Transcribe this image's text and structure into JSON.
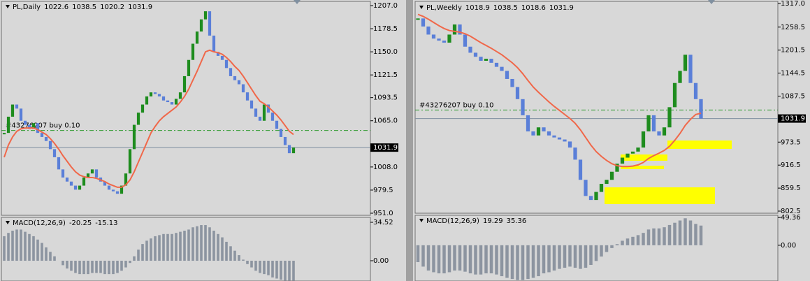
{
  "chart_data": [
    {
      "type": "candlestick",
      "title": "PL,Daily",
      "ohlc": [
        1022.6,
        1038.5,
        1020.2,
        1031.9
      ],
      "values": [
        1050,
        1070,
        1085,
        1080,
        1065,
        1060,
        1055,
        1062,
        1050,
        1045,
        1040,
        1030,
        1020,
        1005,
        995,
        990,
        985,
        980,
        985,
        995,
        1000,
        1005,
        995,
        990,
        985,
        980,
        978,
        975,
        985,
        1000,
        1030,
        1060,
        1075,
        1085,
        1095,
        1100,
        1098,
        1095,
        1090,
        1088,
        1085,
        1092,
        1100,
        1120,
        1140,
        1160,
        1175,
        1190,
        1200,
        1170,
        1150,
        1145,
        1140,
        1130,
        1120,
        1115,
        1110,
        1100,
        1090,
        1080,
        1070,
        1065,
        1085,
        1075,
        1065,
        1055,
        1045,
        1035,
        1025,
        1031.9
      ],
      "ma": [
        1020,
        1035,
        1045,
        1052,
        1055,
        1056,
        1056,
        1056,
        1054,
        1051,
        1048,
        1043,
        1037,
        1030,
        1022,
        1015,
        1008,
        1002,
        998,
        996,
        995,
        995,
        994,
        992,
        990,
        987,
        985,
        983,
        983,
        986,
        992,
        1002,
        1014,
        1026,
        1038,
        1050,
        1058,
        1065,
        1070,
        1074,
        1078,
        1082,
        1088,
        1095,
        1104,
        1115,
        1126,
        1138,
        1150,
        1152,
        1150,
        1149,
        1147,
        1143,
        1138,
        1132,
        1127,
        1120,
        1112,
        1104,
        1096,
        1089,
        1086,
        1082,
        1077,
        1072,
        1066,
        1059,
        1052,
        1048
      ],
      "up_color": "#1e8c1e",
      "down_color": "#5a7fd8",
      "ma_color": "#f0684a",
      "ylim": [
        951,
        1207
      ],
      "yticks": [
        {
          "value": 1207,
          "label": "1207.0"
        },
        1178.5,
        {
          "value": 1150,
          "label": "1150.0"
        },
        1121.5,
        1093.5,
        {
          "value": 1065,
          "label": "1065.0"
        },
        {
          "value": 1008,
          "label": "1008.0"
        },
        979.5,
        {
          "value": 951,
          "label": "951.0"
        }
      ],
      "last_price": 1031.9,
      "order_label": "#43276207 buy 0.10",
      "order_level": 1053
    },
    {
      "type": "histogram",
      "title": "MACD(12,26,9)",
      "header_values": [
        -20.25,
        -15.13
      ],
      "values": [
        22,
        25,
        27,
        28,
        28,
        26,
        24,
        22,
        19,
        16,
        12,
        8,
        4,
        0,
        -4,
        -7,
        -9,
        -11,
        -12,
        -12,
        -12,
        -11,
        -11,
        -11,
        -12,
        -12,
        -12,
        -11,
        -9,
        -6,
        -2,
        4,
        10,
        15,
        18,
        20,
        22,
        23,
        24,
        24,
        24,
        25,
        26,
        27,
        28,
        30,
        31,
        32,
        32,
        30,
        27,
        24,
        21,
        17,
        13,
        9,
        5,
        1,
        -3,
        -6,
        -9,
        -11,
        -12,
        -13,
        -15,
        -16,
        -17,
        -18,
        -18,
        -18
      ],
      "color": "#8c94a0",
      "ylim": [
        -18.2,
        38.3
      ],
      "yticks": [
        34.52,
        {
          "value": 0,
          "label": "0.00"
        }
      ]
    },
    {
      "type": "candlestick",
      "title": "PL,Weekly",
      "ohlc": [
        1018.9,
        1038.5,
        1018.6,
        1031.9
      ],
      "values": [
        1280,
        1260,
        1240,
        1230,
        1225,
        1220,
        1240,
        1265,
        1240,
        1210,
        1195,
        1185,
        1175,
        1180,
        1170,
        1160,
        1150,
        1130,
        1110,
        1080,
        1040,
        1000,
        990,
        1010,
        1000,
        990,
        985,
        980,
        975,
        960,
        930,
        880,
        840,
        830,
        850,
        870,
        880,
        900,
        920,
        935,
        945,
        950,
        960,
        1000,
        1040,
        1000,
        990,
        1010,
        1060,
        1120,
        1150,
        1190,
        1120,
        1080,
        1031.9
      ],
      "ma": [
        1290,
        1285,
        1278,
        1270,
        1262,
        1255,
        1250,
        1248,
        1246,
        1242,
        1236,
        1228,
        1220,
        1213,
        1206,
        1198,
        1190,
        1180,
        1170,
        1158,
        1143,
        1126,
        1110,
        1097,
        1085,
        1073,
        1062,
        1052,
        1042,
        1032,
        1020,
        1004,
        985,
        966,
        950,
        938,
        928,
        920,
        915,
        913,
        913,
        914,
        917,
        923,
        933,
        940,
        946,
        953,
        963,
        978,
        995,
        1015,
        1030,
        1042,
        1045
      ],
      "up_color": "#1e8c1e",
      "down_color": "#5a7fd8",
      "ma_color": "#f0684a",
      "ylim": [
        802.5,
        1317
      ],
      "yticks": [
        {
          "value": 1317,
          "label": "1317.0"
        },
        1258.5,
        1201.5,
        1144.5,
        1087.5,
        973.5,
        916.5,
        859.5,
        802.5
      ],
      "last_price": 1031.9,
      "order_label": "#43276207 buy 0.10",
      "order_level": 1053
    },
    {
      "type": "histogram",
      "title": "MACD(12,26,9)",
      "header_values": [
        19.29,
        35.36
      ],
      "values": [
        -30,
        -38,
        -45,
        -48,
        -50,
        -50,
        -48,
        -45,
        -45,
        -47,
        -50,
        -52,
        -52,
        -50,
        -50,
        -52,
        -55,
        -58,
        -60,
        -62,
        -62,
        -60,
        -58,
        -55,
        -50,
        -48,
        -45,
        -42,
        -40,
        -38,
        -40,
        -42,
        -40,
        -35,
        -28,
        -20,
        -12,
        -5,
        2,
        8,
        12,
        15,
        18,
        22,
        28,
        30,
        30,
        32,
        36,
        40,
        44,
        48,
        44,
        38,
        35
      ],
      "color": "#8c94a0",
      "ylim": [
        -63.6,
        53.3
      ],
      "yticks": [
        49.36,
        {
          "value": 0,
          "label": "0.00"
        }
      ]
    }
  ]
}
